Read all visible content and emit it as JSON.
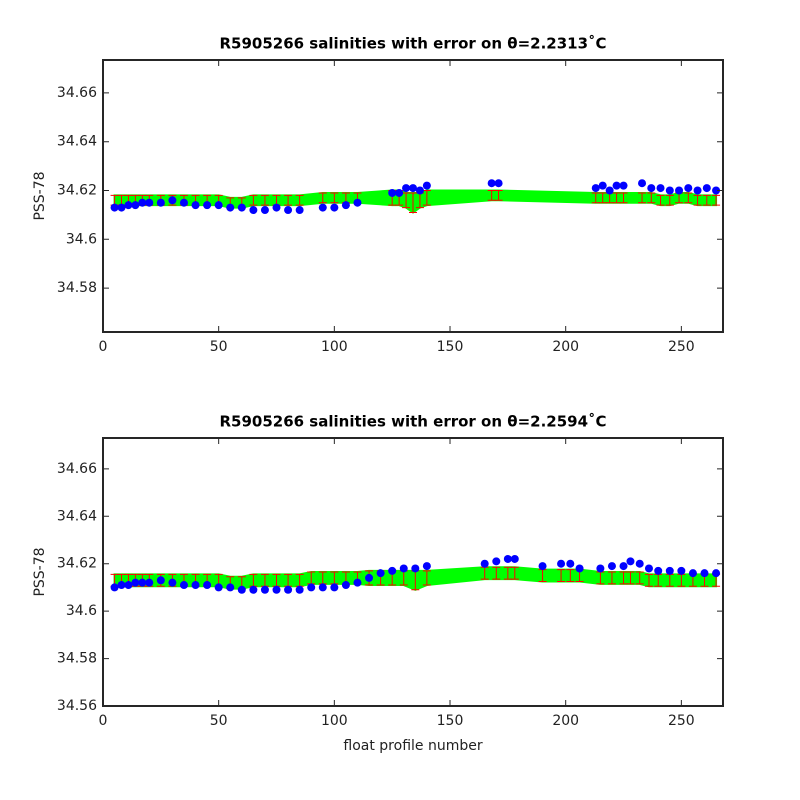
{
  "chart_data": [
    {
      "type": "scatter",
      "title": "R5905266 salinities with error on θ=2.2313˚C",
      "ylabel": "PSS-78",
      "xlim": [
        0,
        268
      ],
      "xticks": [
        0,
        50,
        100,
        150,
        200,
        250
      ],
      "ylim": [
        34.562,
        34.6735
      ],
      "yticks": [
        34.58,
        34.6,
        34.62,
        34.64,
        34.66
      ],
      "x": [
        5,
        8,
        11,
        14,
        17,
        20,
        25,
        30,
        35,
        40,
        45,
        50,
        55,
        60,
        65,
        70,
        75,
        80,
        85,
        95,
        100,
        105,
        110,
        125,
        128,
        131,
        134,
        137,
        140,
        168,
        171,
        213,
        216,
        219,
        222,
        225,
        233,
        237,
        241,
        245,
        249,
        253,
        257,
        261,
        265
      ],
      "series": [
        {
          "marker": "errorbar",
          "color": "#ff0000",
          "fill": "#00ff00",
          "values": [
            34.616,
            34.616,
            34.616,
            34.616,
            34.616,
            34.616,
            34.616,
            34.616,
            34.616,
            34.616,
            34.616,
            34.616,
            34.615,
            34.615,
            34.616,
            34.616,
            34.616,
            34.616,
            34.616,
            34.617,
            34.617,
            34.617,
            34.617,
            34.617,
            34.617,
            34.616,
            34.615,
            34.616,
            34.617,
            34.618,
            34.618,
            34.617,
            34.617,
            34.617,
            34.617,
            34.617,
            34.617,
            34.617,
            34.616,
            34.616,
            34.617,
            34.617,
            34.616,
            34.616,
            34.616
          ],
          "errors": [
            0.002,
            0.002,
            0.002,
            0.002,
            0.002,
            0.002,
            0.002,
            0.002,
            0.002,
            0.002,
            0.002,
            0.002,
            0.002,
            0.002,
            0.002,
            0.002,
            0.002,
            0.002,
            0.002,
            0.002,
            0.002,
            0.002,
            0.002,
            0.003,
            0.003,
            0.003,
            0.004,
            0.003,
            0.003,
            0.002,
            0.002,
            0.002,
            0.002,
            0.002,
            0.002,
            0.002,
            0.002,
            0.002,
            0.002,
            0.002,
            0.002,
            0.002,
            0.002,
            0.002,
            0.002
          ]
        },
        {
          "marker": "dot",
          "color": "#0000ff",
          "values": [
            34.613,
            34.613,
            34.614,
            34.614,
            34.615,
            34.615,
            34.615,
            34.616,
            34.615,
            34.614,
            34.614,
            34.614,
            34.613,
            34.613,
            34.612,
            34.612,
            34.613,
            34.612,
            34.612,
            34.613,
            34.613,
            34.614,
            34.615,
            34.619,
            34.619,
            34.621,
            34.621,
            34.62,
            34.622,
            34.623,
            34.623,
            34.621,
            34.622,
            34.62,
            34.622,
            34.622,
            34.623,
            34.621,
            34.621,
            34.62,
            34.62,
            34.621,
            34.62,
            34.621,
            34.62
          ]
        }
      ]
    },
    {
      "type": "scatter",
      "title": "R5905266 salinities with error on θ=2.2594˚C",
      "ylabel": "PSS-78",
      "xlabel": "float profile number",
      "xlim": [
        0,
        268
      ],
      "xticks": [
        0,
        50,
        100,
        150,
        200,
        250
      ],
      "ylim": [
        34.56,
        34.673
      ],
      "yticks": [
        34.56,
        34.58,
        34.6,
        34.62,
        34.64,
        34.66
      ],
      "x": [
        5,
        8,
        11,
        14,
        17,
        20,
        25,
        30,
        35,
        40,
        45,
        50,
        55,
        60,
        65,
        70,
        75,
        80,
        85,
        90,
        95,
        100,
        105,
        110,
        115,
        120,
        125,
        130,
        135,
        140,
        165,
        170,
        175,
        178,
        190,
        198,
        202,
        206,
        215,
        220,
        225,
        228,
        232,
        236,
        240,
        245,
        250,
        255,
        260,
        265
      ],
      "series": [
        {
          "marker": "errorbar",
          "color": "#ff0000",
          "fill": "#00ff00",
          "values": [
            34.613,
            34.613,
            34.613,
            34.613,
            34.613,
            34.613,
            34.613,
            34.613,
            34.613,
            34.613,
            34.613,
            34.613,
            34.612,
            34.612,
            34.613,
            34.613,
            34.613,
            34.613,
            34.613,
            34.614,
            34.614,
            34.614,
            34.614,
            34.614,
            34.614,
            34.614,
            34.614,
            34.614,
            34.613,
            34.614,
            34.616,
            34.616,
            34.616,
            34.616,
            34.615,
            34.615,
            34.615,
            34.615,
            34.614,
            34.614,
            34.614,
            34.614,
            34.614,
            34.613,
            34.613,
            34.613,
            34.613,
            34.613,
            34.613,
            34.613
          ],
          "errors": [
            0.0025,
            0.0025,
            0.0025,
            0.0025,
            0.0025,
            0.0025,
            0.0025,
            0.0025,
            0.0025,
            0.0025,
            0.0025,
            0.0025,
            0.0025,
            0.0025,
            0.0025,
            0.0025,
            0.0025,
            0.0025,
            0.0025,
            0.0025,
            0.0025,
            0.0025,
            0.0025,
            0.0025,
            0.003,
            0.003,
            0.003,
            0.003,
            0.004,
            0.003,
            0.0025,
            0.0025,
            0.0025,
            0.0025,
            0.0025,
            0.0025,
            0.0025,
            0.0025,
            0.0025,
            0.0025,
            0.0025,
            0.0025,
            0.0025,
            0.0025,
            0.0025,
            0.0025,
            0.0025,
            0.0025,
            0.0025,
            0.0025
          ]
        },
        {
          "marker": "dot",
          "color": "#0000ff",
          "values": [
            34.61,
            34.611,
            34.611,
            34.612,
            34.612,
            34.612,
            34.613,
            34.612,
            34.611,
            34.611,
            34.611,
            34.61,
            34.61,
            34.609,
            34.609,
            34.609,
            34.609,
            34.609,
            34.609,
            34.61,
            34.61,
            34.61,
            34.611,
            34.612,
            34.614,
            34.616,
            34.617,
            34.618,
            34.618,
            34.619,
            34.62,
            34.621,
            34.622,
            34.622,
            34.619,
            34.62,
            34.62,
            34.618,
            34.618,
            34.619,
            34.619,
            34.621,
            34.62,
            34.618,
            34.617,
            34.617,
            34.617,
            34.616,
            34.616,
            34.616
          ]
        }
      ]
    }
  ]
}
